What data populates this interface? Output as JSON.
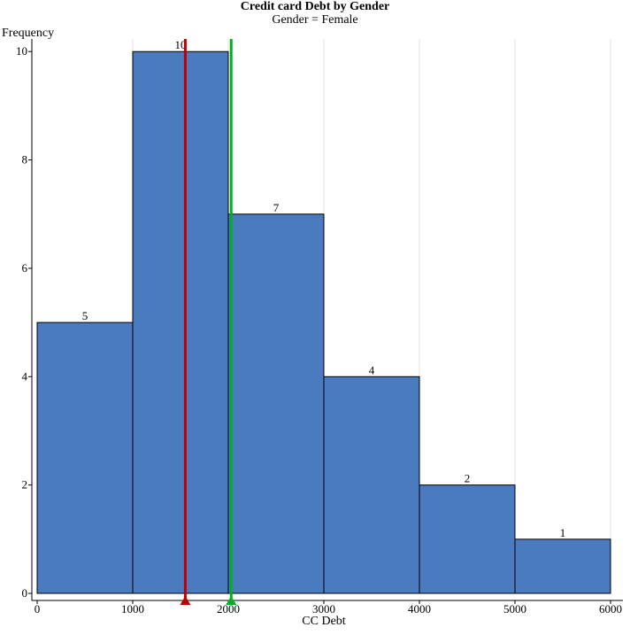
{
  "chart_data": {
    "type": "bar",
    "title": "Credit card Debt by Gender",
    "subtitle": "Gender = Female",
    "xlabel": "CC Debt",
    "ylabel": "Frequency",
    "bins": [
      {
        "x0": 0,
        "x1": 1000,
        "count": 5
      },
      {
        "x0": 1000,
        "x1": 2000,
        "count": 10
      },
      {
        "x0": 2000,
        "x1": 3000,
        "count": 7
      },
      {
        "x0": 3000,
        "x1": 4000,
        "count": 4
      },
      {
        "x0": 4000,
        "x1": 5000,
        "count": 2
      },
      {
        "x0": 5000,
        "x1": 6000,
        "count": 1
      }
    ],
    "xlim": [
      0,
      6000
    ],
    "ylim": [
      0,
      10.2
    ],
    "x_ticks": [
      0,
      1000,
      2000,
      3000,
      4000,
      5000,
      6000
    ],
    "y_ticks": [
      0,
      2,
      4,
      6,
      8,
      10
    ],
    "grid": "vertical",
    "bar_color": "#4a7bbf",
    "reference_lines": [
      {
        "x": 1550,
        "color": "#c00000"
      },
      {
        "x": 2030,
        "color": "#00b020"
      }
    ]
  }
}
